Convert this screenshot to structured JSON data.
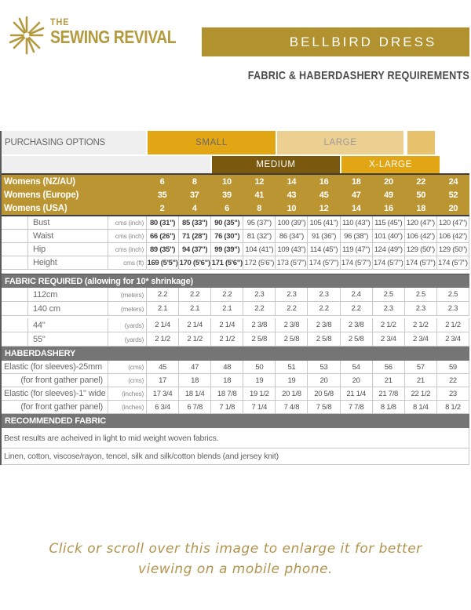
{
  "brand": {
    "the": "THE",
    "name": "SEWING REVIVAL"
  },
  "banner": {
    "title": "BELLBIRD DRESS"
  },
  "subtitle": "FABRIC & HABERDASHERY REQUIREMENTS",
  "purchasing": {
    "label": "PURCHASING OPTIONS",
    "small": "SMALL",
    "large": "LARGE",
    "medium": "MEDIUM",
    "xlarge": "X-LARGE"
  },
  "table": {
    "groups": [
      {
        "type": "sizes",
        "cls": "g-sizes",
        "rows": [
          {
            "label": "Womens (NZ/AU)",
            "values": [
              "6",
              "8",
              "10",
              "12",
              "14",
              "16",
              "18",
              "20",
              "22",
              "24"
            ]
          },
          {
            "label": "Womens (Europe)",
            "values": [
              "35",
              "37",
              "39",
              "41",
              "43",
              "45",
              "47",
              "49",
              "50",
              "52"
            ]
          },
          {
            "label": "Womens (USA)",
            "values": [
              "2",
              "4",
              "6",
              "8",
              "10",
              "12",
              "14",
              "16",
              "18",
              "20"
            ]
          }
        ]
      },
      {
        "type": "measures",
        "cls": "g-meas",
        "rows": [
          {
            "label": "Bust",
            "unit": "cms (inch)",
            "indent": true,
            "bold": 3,
            "values": [
              "80 (31\")",
              "85 (33\")",
              "90 (35\")",
              "95 (37\")",
              "100 (39\")",
              "105 (41\")",
              "110 (43\")",
              "115 (45\")",
              "120 (47\")",
              "120 (47\")"
            ]
          },
          {
            "label": "Waist",
            "unit": "cms (inch)",
            "indent": true,
            "bold": 3,
            "values": [
              "66 (26\")",
              "71 (28\")",
              "76 (30\")",
              "81 (32\")",
              "86 (34\")",
              "91 (36\")",
              "96 (38\")",
              "101 (40\")",
              "106 (42\")",
              "106 (42\")"
            ]
          },
          {
            "label": "Hip",
            "unit": "cms (inch)",
            "indent": true,
            "bold": 3,
            "values": [
              "89 (35\")",
              "94 (37\")",
              "99 (39\")",
              "104 (41\")",
              "109 (43\")",
              "114 (45\")",
              "119 (47\")",
              "124 (49\")",
              "129 (50\")",
              "129 (50\")"
            ]
          },
          {
            "label": "Height",
            "unit": "cms (ft)",
            "indent": true,
            "bold": 3,
            "values": [
              "169 (5'5\")",
              "170 (5'6\")",
              "171 (5'6\")",
              "172 (5'6\")",
              "173 (5'7\")",
              "174 (5'7\")",
              "174 (5'7\")",
              "174 (5'7\")",
              "174 (5'7\")",
              "174 (5'7\")"
            ]
          }
        ]
      },
      {
        "type": "bar",
        "title": "FABRIC REQUIRED (allowing for 10* shrinkage)",
        "mt": true
      },
      {
        "type": "measures",
        "cls": "g-meas g-fab",
        "rows": [
          {
            "label": "112cm",
            "unit": "(meters)",
            "indent": true,
            "values": [
              "2.2",
              "2.2",
              "2.2",
              "2.3",
              "2.3",
              "2.3",
              "2.4",
              "2.5",
              "2.5",
              "2.5"
            ]
          },
          {
            "label": "140 cm",
            "unit": "(meters)",
            "indent": true,
            "values": [
              "2.1",
              "2.1",
              "2.1",
              "2.2",
              "2.2",
              "2.2",
              "2.2",
              "2.3",
              "2.3",
              "2.3"
            ]
          }
        ]
      },
      {
        "type": "gap"
      },
      {
        "type": "measures",
        "cls": "g-meas g-fab",
        "rows": [
          {
            "label": "44\"",
            "unit": "(yards)",
            "indent": true,
            "values": [
              "2 1/4",
              "2 1/4",
              "2 1/4",
              "2 3/8",
              "2 3/8",
              "2 3/8",
              "2 3/8",
              "2 1/2",
              "2 1/2",
              "2 1/2"
            ]
          },
          {
            "label": "55\"",
            "unit": "(yards)",
            "indent": true,
            "values": [
              "2 1/2",
              "2 1/2",
              "2 1/2",
              "2 5/8",
              "2 5/8",
              "2 5/8",
              "2 5/8",
              "2 3/4",
              "2 3/4",
              "2 3/4"
            ]
          }
        ]
      },
      {
        "type": "bar",
        "title": "HABERDASHERY"
      },
      {
        "type": "measures",
        "cls": "g-meas g-hab",
        "rows": [
          {
            "label": "Elastic (for sleeves)-25mm",
            "unit": "(cms)",
            "values": [
              "45",
              "47",
              "48",
              "50",
              "51",
              "53",
              "54",
              "56",
              "57",
              "59"
            ]
          },
          {
            "label": "(for front gather panel)",
            "unit": "(cms)",
            "right": true,
            "values": [
              "17",
              "18",
              "18",
              "19",
              "19",
              "20",
              "20",
              "21",
              "21",
              "22"
            ]
          },
          {
            "label": "Elastic (for sleeves)-1\" wide",
            "unit": "(inches)",
            "values": [
              "17 3/4",
              "18 1/4",
              "18 7/8",
              "19 1/2",
              "20 1/8",
              "20 5/8",
              "21 1/4",
              "21 7/8",
              "22 1/2",
              "23"
            ]
          },
          {
            "label": "(for front gather panel)",
            "unit": "(inches)",
            "right": true,
            "values": [
              "6 3/4",
              "6 7/8",
              "7 1/8",
              "7 1/4",
              "7 4/8",
              "7 5/8",
              "7 7/8",
              "8 1/8",
              "8 1/4",
              "8 1/2"
            ]
          }
        ]
      },
      {
        "type": "bar",
        "title": "RECOMMENDED FABRIC"
      },
      {
        "type": "note",
        "cls": "note1",
        "text": "Best results are acheived in light to mid weight woven fabrics."
      },
      {
        "type": "note",
        "cls": "note2",
        "text": "Linen, cotton, viscose/rayon, tencel, silk and silk/cotton blends (and jersey knit)"
      }
    ]
  },
  "footer": {
    "line1": "Click or scroll over this image to enlarge it for better",
    "line2": "viewing on a mobile phone."
  }
}
